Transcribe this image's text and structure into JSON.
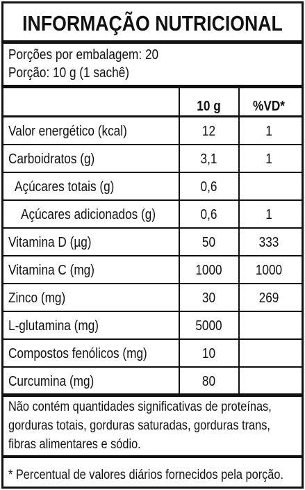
{
  "header": {
    "title": "INFORMAÇÃO NUTRICIONAL",
    "servings": "Porções por embalagem: 20",
    "serving_size": "Porção: 10 g (1 sachê)"
  },
  "table": {
    "columns": [
      "10 g",
      "%VD*"
    ],
    "rows": [
      [
        "Valor energético (kcal)",
        "12",
        "1"
      ],
      [
        "Carboidratos (g)",
        "3,1",
        "1"
      ],
      [
        "Açúcares totais (g)",
        "0,6",
        null
      ],
      [
        "Açúcares adicionados (g)",
        "0,6",
        "1"
      ],
      [
        "Vitamina D (µg)",
        "50",
        "333"
      ],
      [
        "Vitamina C (mg)",
        "1000",
        "1000"
      ],
      [
        "Zinco (mg)",
        "30",
        "269"
      ],
      [
        "L-glutamina (mg)",
        "5000",
        null
      ],
      [
        "Compostos fenólicos (mg)",
        "10",
        null
      ],
      [
        "Curcumina (mg)",
        "80",
        null
      ]
    ]
  },
  "footer": {
    "note": [
      "Não contém quantidades significativas de proteínas,",
      "gorduras totais, gorduras saturadas, gorduras trans,",
      "fibras alimentares e sódio."
    ],
    "footnote": "* Percentual de valores diários fornecidos pela porção."
  }
}
